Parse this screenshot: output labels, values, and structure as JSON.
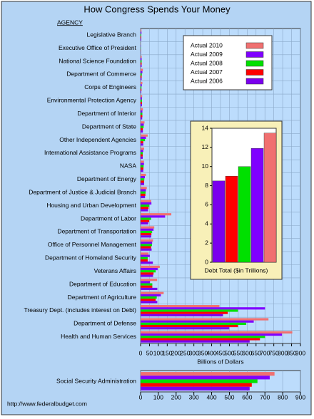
{
  "chart_data": [
    {
      "type": "hbar",
      "title": "How Congress Spends Your Money",
      "y_label": "AGENCY",
      "x_label": "Billions of Dollars",
      "source": "http://www.federalbudget.com",
      "categories": [
        "Legislative Branch",
        "Executive Office of President",
        "National Science Foundation",
        "Department of Commerce",
        "Corps of Engineers",
        "Environmental Protection Agency",
        "Department of Interior",
        "Department of State",
        "Other Independent Agencies",
        "International Assistance Programs",
        "NASA",
        "Department of Energy",
        "Department of Justice & Judicial Branch",
        "Housing and Urban Development",
        "Department of Labor",
        "Department of Transportation",
        "Office of Personnel Management",
        "Department of Homeland Security",
        "Veterans Affairs",
        "Department of Education",
        "Department of Agriculture",
        "Treasury Dept. (includes interest on Debt)",
        "Department of Defense",
        "Health and Human Services"
      ],
      "series": [
        {
          "name": "Actual 2010",
          "color": "#f07070",
          "values": [
            5,
            1,
            6,
            13,
            10,
            9,
            13,
            22,
            40,
            20,
            19,
            30,
            35,
            60,
            173,
            77,
            70,
            45,
            108,
            93,
            130,
            444,
            720,
            854
          ]
        },
        {
          "name": "Actual 2009",
          "color": "#7f00ff",
          "values": [
            5,
            1,
            6,
            10,
            7,
            8,
            10,
            18,
            30,
            15,
            19,
            24,
            30,
            61,
            138,
            73,
            65,
            52,
            96,
            53,
            114,
            701,
            637,
            796
          ]
        },
        {
          "name": "Actual 2008",
          "color": "#00e000",
          "values": [
            4,
            1,
            6,
            7,
            5,
            8,
            10,
            17,
            25,
            12,
            17,
            21,
            28,
            49,
            59,
            65,
            64,
            40,
            85,
            66,
            91,
            548,
            595,
            701
          ]
        },
        {
          "name": "Actual 2007",
          "color": "#ff0000",
          "values": [
            4,
            1,
            6,
            6,
            5,
            8,
            10,
            13,
            15,
            12,
            16,
            20,
            27,
            45,
            48,
            61,
            59,
            40,
            73,
            66,
            85,
            491,
            548,
            672
          ]
        },
        {
          "name": "Actual 2006",
          "color": "#7a00ee",
          "values": [
            4,
            1,
            6,
            6,
            4,
            8,
            9,
            13,
            15,
            12,
            15,
            20,
            25,
            42,
            43,
            60,
            62,
            69,
            70,
            94,
            94,
            464,
            499,
            614
          ]
        }
      ],
      "xlim": [
        0,
        900
      ],
      "xticks": [
        0,
        50,
        100,
        150,
        200,
        250,
        300,
        350,
        400,
        450,
        500,
        550,
        600,
        650,
        700,
        750,
        800,
        850,
        900
      ],
      "grid": true,
      "legend": "top-right"
    },
    {
      "type": "hbar",
      "categories": [
        "Social Security Administration"
      ],
      "series": [
        {
          "values": [
            754
          ]
        },
        {
          "values": [
            727
          ]
        },
        {
          "values": [
            658
          ]
        },
        {
          "values": [
            626
          ]
        },
        {
          "values": [
            614
          ]
        }
      ],
      "xlim": [
        0,
        900
      ],
      "xticks": [
        0,
        100,
        200,
        300,
        400,
        500,
        600,
        700,
        800,
        900
      ],
      "grid": true
    },
    {
      "type": "bar",
      "x_label": "Debt Total ($in Trillions)",
      "categories": [
        null,
        null,
        null,
        null,
        null
      ],
      "values": [
        8.5,
        9.0,
        10.0,
        11.9,
        13.5
      ],
      "colors": [
        "#7a00ee",
        "#ff0000",
        "#00e000",
        "#7f00ff",
        "#f07070"
      ],
      "ylim": [
        0,
        14
      ],
      "yticks": [
        0,
        2,
        4,
        6,
        8,
        10,
        12,
        14
      ]
    }
  ]
}
